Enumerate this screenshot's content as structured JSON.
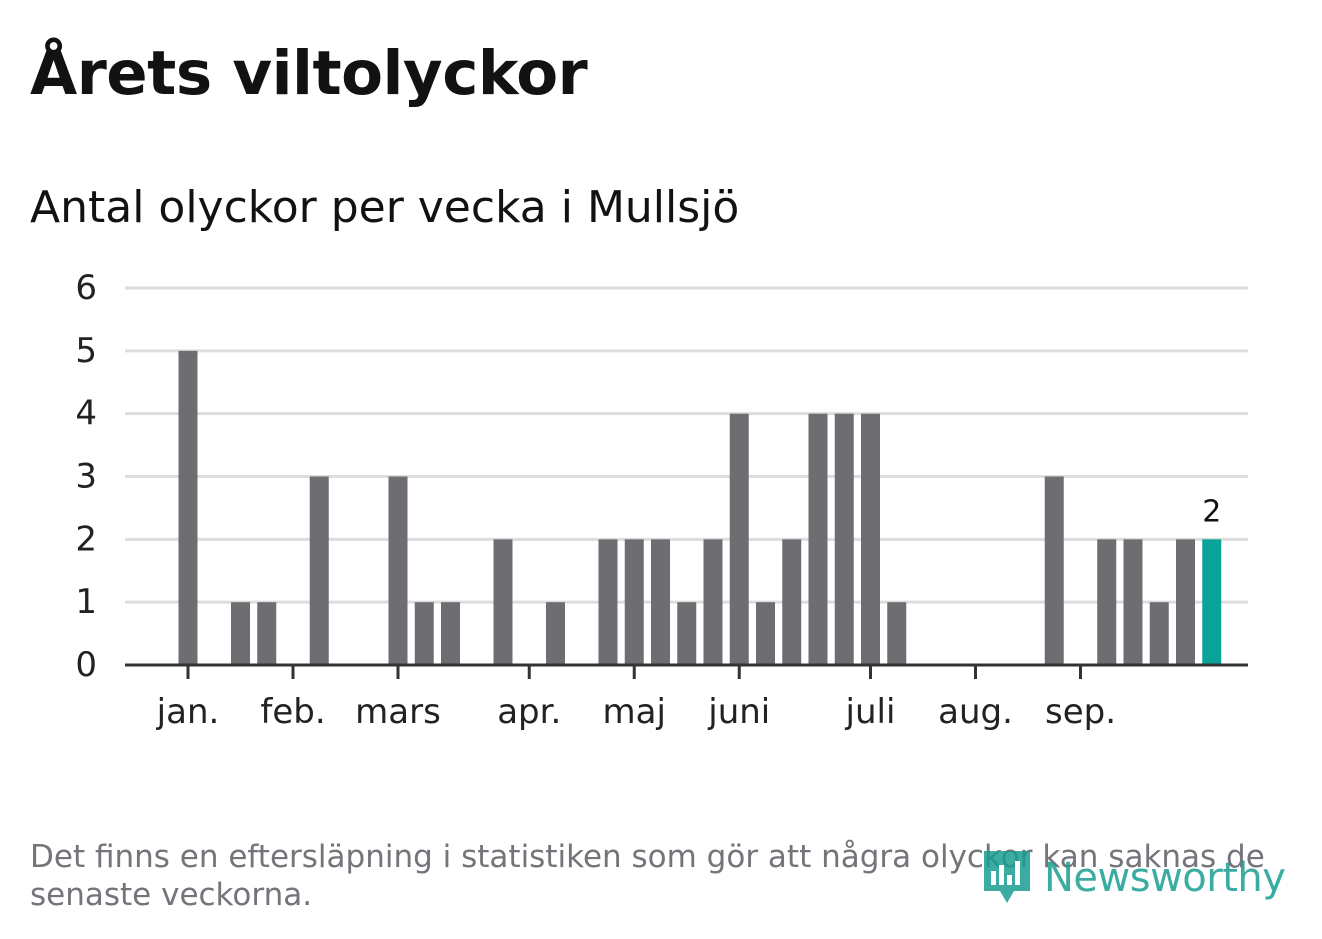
{
  "header": {
    "title": "Årets viltolyckor",
    "subtitle": "Antal olyckor per vecka i Mullsjö"
  },
  "footer": {
    "note": "Det finns en eftersläpning i statistiken som gör att några olyckor kan saknas de senaste veckorna.",
    "logo_text": "Newsworthy"
  },
  "colors": {
    "bar": "#6e6d72",
    "highlight": "#0aa39a",
    "grid": "#dddddd",
    "axis": "#333333",
    "tick_text": "#222222"
  },
  "chart_data": {
    "type": "bar",
    "title": "",
    "xlabel": "",
    "ylabel": "",
    "ylim": [
      0,
      6
    ],
    "yticks": [
      0,
      1,
      2,
      3,
      4,
      5,
      6
    ],
    "grid": true,
    "weeks": [
      1,
      2,
      3,
      4,
      5,
      6,
      7,
      8,
      9,
      10,
      11,
      12,
      13,
      14,
      15,
      16,
      17,
      18,
      19,
      20,
      21,
      22,
      23,
      24,
      25,
      26,
      27,
      28,
      29,
      30,
      31,
      32,
      33,
      34,
      35,
      36,
      37,
      38,
      39,
      40
    ],
    "values": [
      5,
      0,
      1,
      1,
      0,
      3,
      0,
      0,
      3,
      1,
      1,
      0,
      2,
      0,
      1,
      0,
      2,
      2,
      2,
      1,
      2,
      4,
      1,
      2,
      4,
      4,
      4,
      1,
      0,
      0,
      0,
      0,
      0,
      3,
      0,
      2,
      2,
      1,
      2,
      2
    ],
    "highlight_last": true,
    "last_value_label": "2",
    "month_ticks": [
      {
        "label": "jan.",
        "week": 1
      },
      {
        "label": "feb.",
        "week": 5
      },
      {
        "label": "mars",
        "week": 9
      },
      {
        "label": "apr.",
        "week": 14
      },
      {
        "label": "maj",
        "week": 18
      },
      {
        "label": "juni",
        "week": 22
      },
      {
        "label": "juli",
        "week": 27
      },
      {
        "label": "aug.",
        "week": 31
      },
      {
        "label": "sep.",
        "week": 35
      }
    ]
  }
}
